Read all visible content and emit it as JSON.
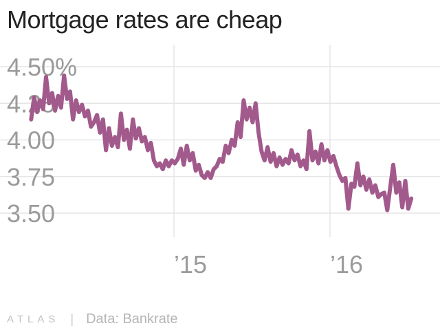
{
  "title": "Mortgage rates are cheap",
  "footer": {
    "brand": "ATLAS",
    "separator": "|",
    "source": "Data: Bankrate"
  },
  "colors": {
    "line": "#a25a8c",
    "grid": "#e6e6e6",
    "tick_text": "#9a9a9a",
    "title": "#222222"
  },
  "chart_data": {
    "type": "line",
    "title": "Mortgage rates are cheap",
    "xlabel": "",
    "ylabel": "",
    "y_ticks": [
      {
        "value": 4.5,
        "label": "4.50%"
      },
      {
        "value": 4.25,
        "label": "4.25"
      },
      {
        "value": 4.0,
        "label": "4.00"
      },
      {
        "value": 3.75,
        "label": "3.75"
      },
      {
        "value": 3.5,
        "label": "3.50"
      }
    ],
    "x_ticks": [
      {
        "value": "2015-01-01",
        "label": "’15"
      },
      {
        "value": "2016-01-01",
        "label": "’16"
      }
    ],
    "xlim": [
      "2014-01-01",
      "2016-09-01"
    ],
    "ylim": [
      3.35,
      4.6
    ],
    "grid": true,
    "series": [
      {
        "x": [
          "2014-02-01",
          "2014-02-08",
          "2014-02-15",
          "2014-02-22",
          "2014-03-01",
          "2014-03-08",
          "2014-03-15",
          "2014-03-22",
          "2014-03-29",
          "2014-04-05",
          "2014-04-12",
          "2014-04-19",
          "2014-04-26",
          "2014-05-03",
          "2014-05-10",
          "2014-05-17",
          "2014-05-24",
          "2014-05-31",
          "2014-06-07",
          "2014-06-14",
          "2014-06-21",
          "2014-06-28",
          "2014-07-05",
          "2014-07-12",
          "2014-07-19",
          "2014-07-26",
          "2014-08-02",
          "2014-08-09",
          "2014-08-16",
          "2014-08-23",
          "2014-08-30",
          "2014-09-06",
          "2014-09-13",
          "2014-09-20",
          "2014-09-27",
          "2014-10-04",
          "2014-10-11",
          "2014-10-18",
          "2014-10-25",
          "2014-11-01",
          "2014-11-08",
          "2014-11-15",
          "2014-11-22",
          "2014-11-29",
          "2014-12-06",
          "2014-12-13",
          "2014-12-20",
          "2014-12-27",
          "2015-01-03",
          "2015-01-10",
          "2015-01-17",
          "2015-01-24",
          "2015-01-31",
          "2015-02-07",
          "2015-02-14",
          "2015-02-21",
          "2015-02-28",
          "2015-03-07",
          "2015-03-14",
          "2015-03-21",
          "2015-03-28",
          "2015-04-04",
          "2015-04-11",
          "2015-04-18",
          "2015-04-25",
          "2015-05-02",
          "2015-05-09",
          "2015-05-16",
          "2015-05-23",
          "2015-05-30",
          "2015-06-06",
          "2015-06-13",
          "2015-06-20",
          "2015-06-27",
          "2015-07-04",
          "2015-07-11",
          "2015-07-18",
          "2015-07-25",
          "2015-08-01",
          "2015-08-08",
          "2015-08-15",
          "2015-08-22",
          "2015-08-29",
          "2015-09-05",
          "2015-09-12",
          "2015-09-19",
          "2015-09-26",
          "2015-10-03",
          "2015-10-10",
          "2015-10-17",
          "2015-10-24",
          "2015-10-31",
          "2015-11-07",
          "2015-11-14",
          "2015-11-21",
          "2015-11-28",
          "2015-12-05",
          "2015-12-12",
          "2015-12-19",
          "2015-12-26",
          "2016-01-02",
          "2016-01-09",
          "2016-01-16",
          "2016-01-23",
          "2016-01-30",
          "2016-02-06",
          "2016-02-13",
          "2016-02-20",
          "2016-02-27",
          "2016-03-05",
          "2016-03-12",
          "2016-03-19",
          "2016-03-26",
          "2016-04-02",
          "2016-04-09",
          "2016-04-16",
          "2016-04-23",
          "2016-04-30",
          "2016-05-07",
          "2016-05-14",
          "2016-05-21",
          "2016-05-28",
          "2016-06-04",
          "2016-06-11",
          "2016-06-18",
          "2016-06-25",
          "2016-07-02",
          "2016-07-09"
        ],
        "values": [
          4.14,
          4.29,
          4.19,
          4.27,
          4.21,
          4.43,
          4.25,
          4.32,
          4.2,
          4.3,
          4.22,
          4.44,
          4.28,
          4.33,
          4.14,
          4.27,
          4.19,
          4.24,
          4.16,
          4.2,
          4.09,
          4.12,
          4.17,
          4.05,
          4.14,
          3.93,
          4.08,
          3.96,
          4.02,
          3.95,
          4.18,
          4.0,
          4.07,
          3.94,
          4.14,
          4.01,
          4.08,
          3.99,
          4.02,
          3.93,
          3.98,
          3.86,
          3.82,
          3.84,
          3.8,
          3.86,
          3.82,
          3.86,
          3.84,
          3.87,
          3.94,
          3.83,
          3.96,
          3.86,
          3.91,
          3.79,
          3.83,
          3.76,
          3.74,
          3.78,
          3.74,
          3.8,
          3.82,
          3.87,
          3.85,
          3.96,
          3.91,
          4.0,
          3.96,
          4.12,
          4.02,
          4.27,
          4.14,
          4.22,
          4.12,
          4.25,
          4.05,
          3.92,
          3.86,
          3.95,
          3.85,
          3.91,
          3.82,
          3.88,
          3.83,
          3.87,
          3.84,
          3.93,
          3.86,
          3.9,
          3.82,
          3.86,
          3.8,
          4.06,
          3.86,
          3.92,
          3.84,
          3.97,
          3.86,
          3.93,
          3.85,
          3.89,
          3.82,
          3.76,
          3.72,
          3.74,
          3.53,
          3.7,
          3.68,
          3.84,
          3.69,
          3.75,
          3.66,
          3.73,
          3.64,
          3.69,
          3.61,
          3.63,
          3.64,
          3.52,
          3.68,
          3.83,
          3.64,
          3.71,
          3.54,
          3.72,
          3.53,
          3.6
        ]
      }
    ]
  }
}
